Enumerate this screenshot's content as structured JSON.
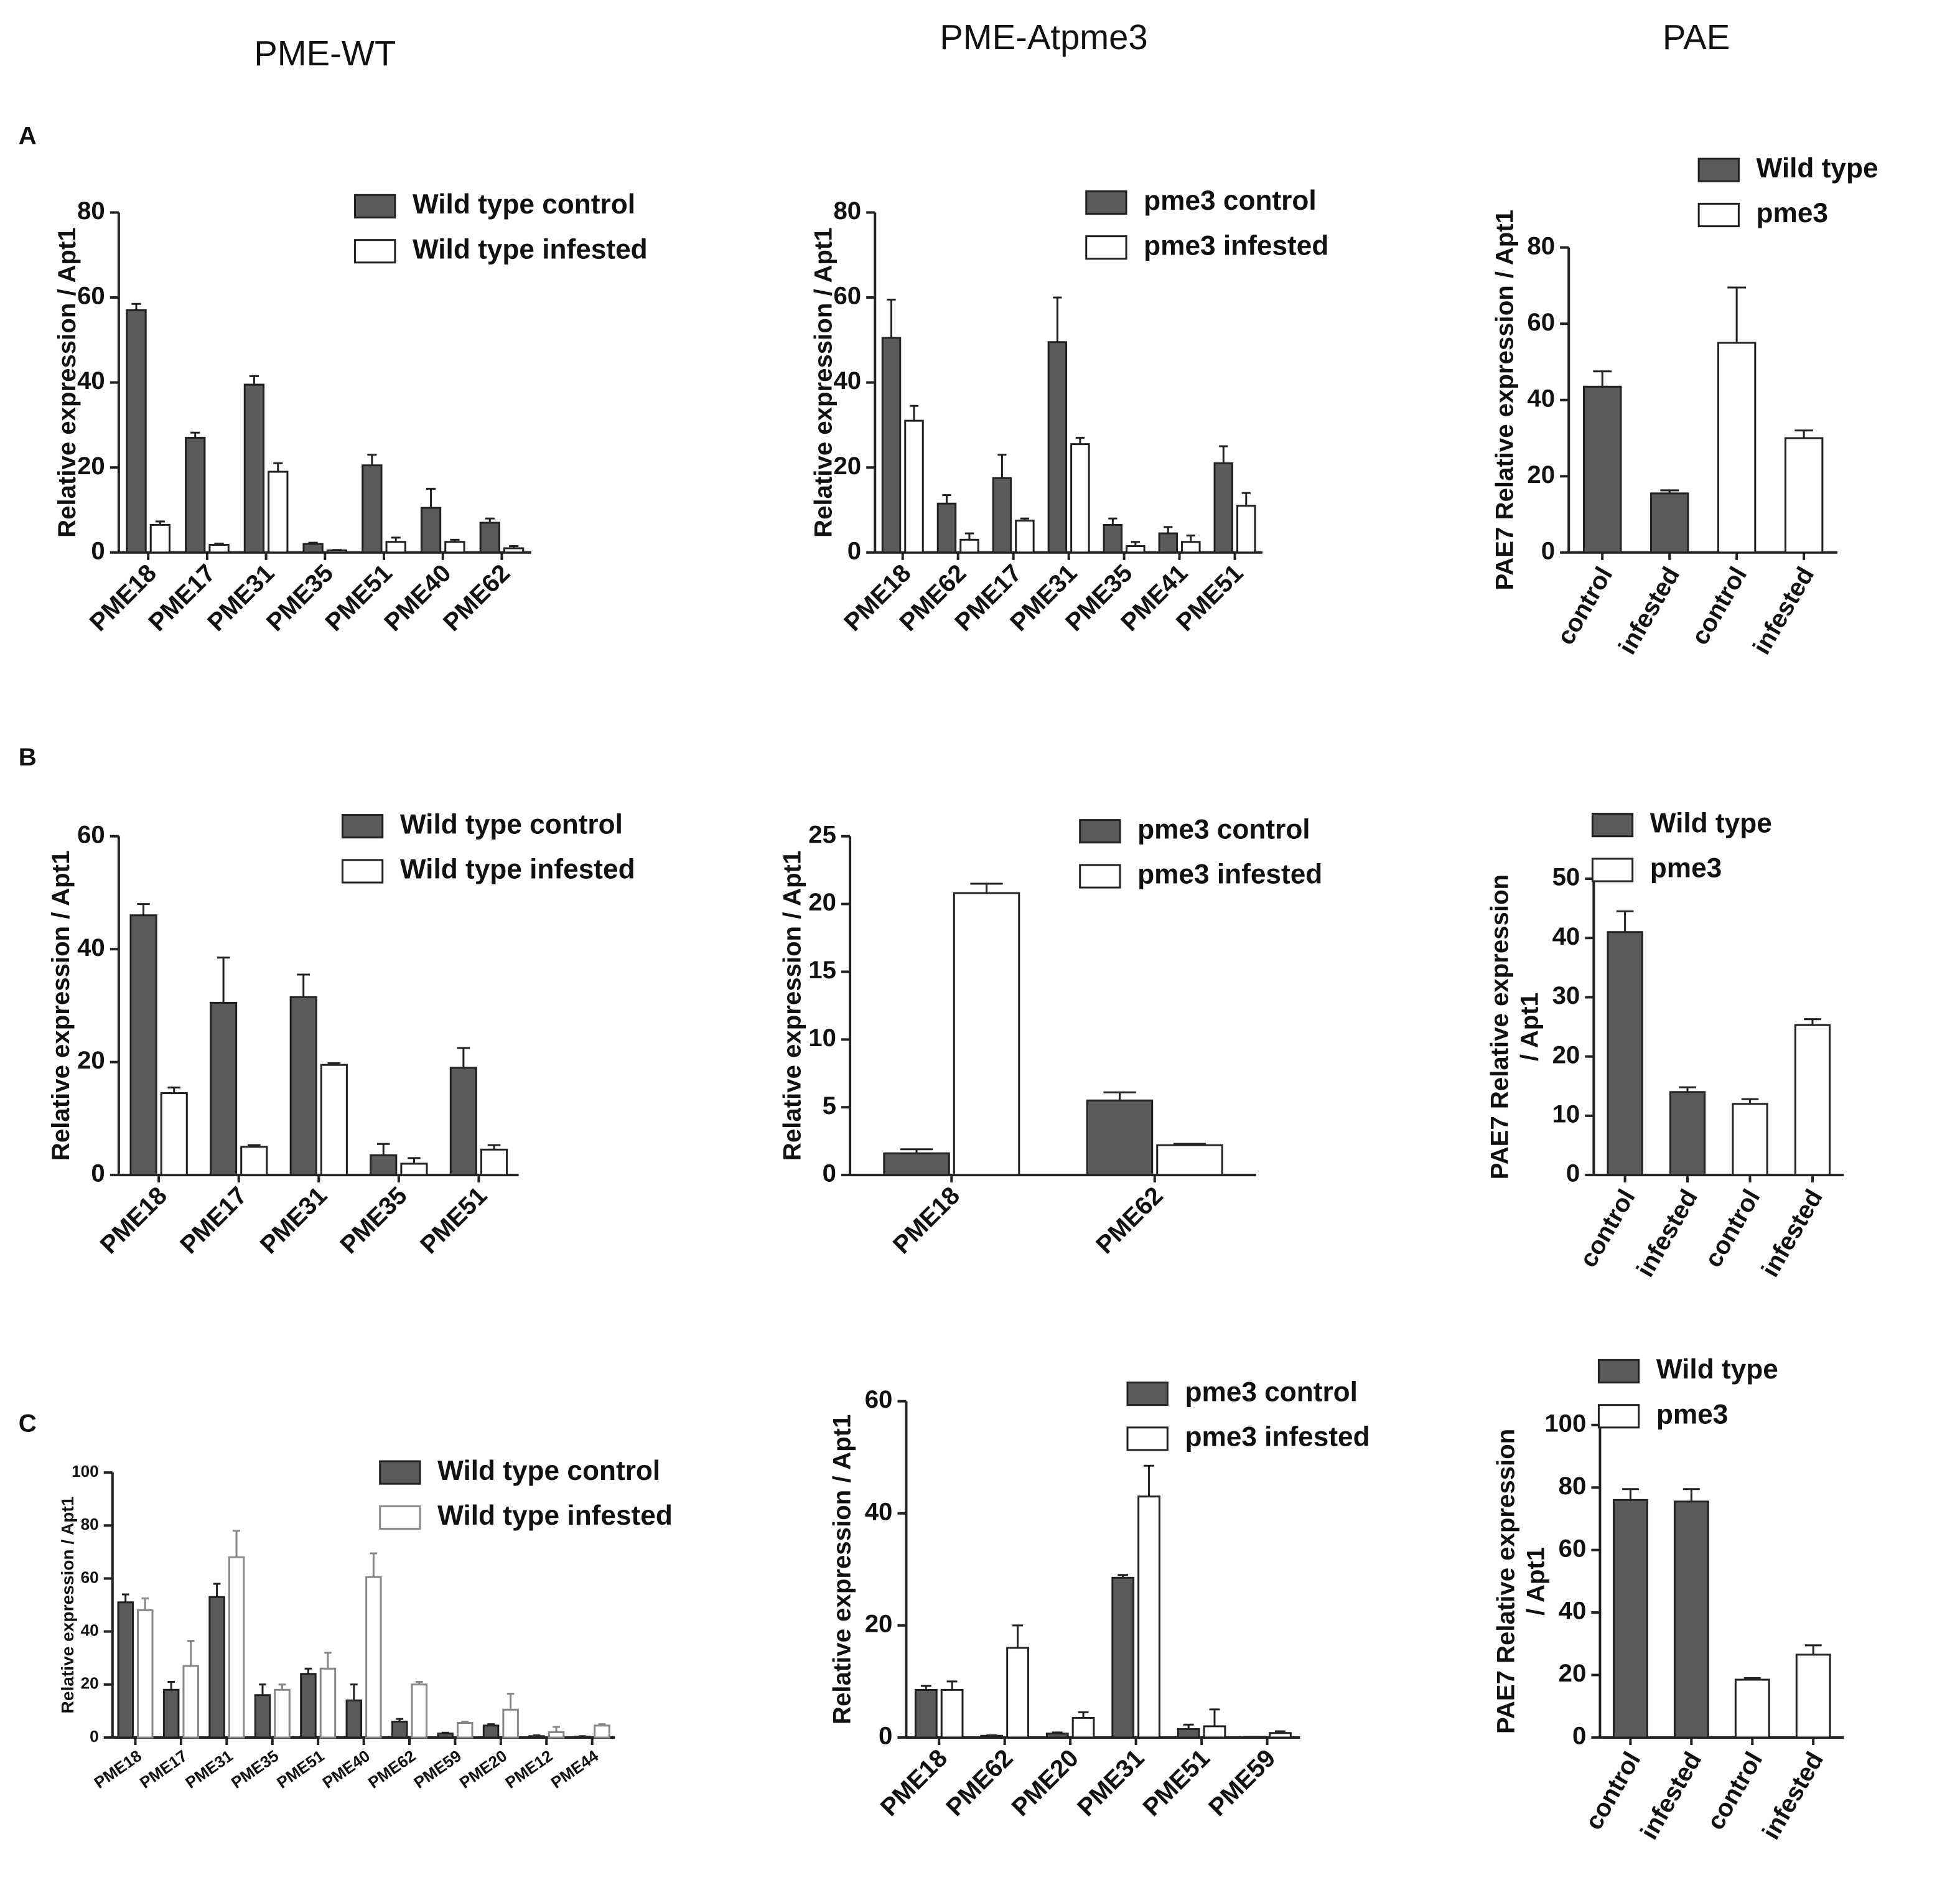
{
  "column_titles": [
    "PME-WT",
    "PME-Atpme3",
    "PAE"
  ],
  "row_labels": [
    "A",
    "B",
    "C"
  ],
  "chart_data": [
    {
      "type": "bar",
      "y_label": [
        "Relative expression / Apt1"
      ],
      "categories": [
        "PME18",
        "PME17",
        "PME31",
        "PME35",
        "PME51",
        "PME40",
        "PME62"
      ],
      "series": [
        {
          "name": "Wild type control",
          "color": "#5a5a5a",
          "values": [
            57,
            27,
            39.5,
            2,
            20.5,
            10.5,
            7
          ],
          "errors": [
            1.5,
            1.2,
            2,
            0.3,
            2.5,
            4.5,
            1
          ]
        },
        {
          "name": "Wild type infested",
          "color": "#ffffff",
          "values": [
            6.5,
            1.8,
            19,
            0.5,
            2.5,
            2.5,
            1
          ],
          "errors": [
            0.8,
            0.3,
            2,
            0.1,
            1,
            0.5,
            0.5
          ]
        }
      ],
      "ylim": [
        0,
        80
      ],
      "yticks": [
        0,
        20,
        40,
        60,
        80
      ]
    },
    {
      "type": "bar",
      "y_label": [
        "Relative expression / Apt1"
      ],
      "categories": [
        "PME18",
        "PME62",
        "PME17",
        "PME31",
        "PME35",
        "PME41",
        "PME51"
      ],
      "series": [
        {
          "name": "pme3 control",
          "color": "#5a5a5a",
          "values": [
            50.5,
            11.5,
            17.5,
            49.5,
            6.5,
            4.5,
            21
          ],
          "errors": [
            9,
            2,
            5.5,
            10.5,
            1.5,
            1.5,
            4
          ]
        },
        {
          "name": "pme3 infested",
          "color": "#ffffff",
          "values": [
            31,
            3,
            7.5,
            25.5,
            1.5,
            2.5,
            11
          ],
          "errors": [
            3.5,
            1.5,
            0.5,
            1.5,
            1,
            1.5,
            3
          ]
        }
      ],
      "ylim": [
        0,
        80
      ],
      "yticks": [
        0,
        20,
        40,
        60,
        80
      ]
    },
    {
      "type": "bar",
      "y_label": [
        "PAE7 Relative expression / Apt1"
      ],
      "categories": [
        "control",
        "infested",
        "control",
        "infested"
      ],
      "series": [
        {
          "name": "Wild type",
          "color": "#5a5a5a",
          "values": [
            43.5,
            15.5,
            null,
            null
          ],
          "errors": [
            4,
            0.8,
            null,
            null
          ]
        },
        {
          "name": "pme3",
          "color": "#ffffff",
          "values": [
            null,
            null,
            55,
            30
          ],
          "errors": [
            null,
            null,
            14.5,
            2
          ]
        }
      ],
      "ylim": [
        0,
        80
      ],
      "yticks": [
        0,
        20,
        40,
        60,
        80
      ]
    },
    {
      "type": "bar",
      "y_label": [
        "Relative expression / Apt1"
      ],
      "categories": [
        "PME18",
        "PME17",
        "PME31",
        "PME35",
        "PME51"
      ],
      "series": [
        {
          "name": "Wild type control",
          "color": "#5a5a5a",
          "values": [
            46,
            30.5,
            31.5,
            3.5,
            19
          ],
          "errors": [
            2,
            8,
            4,
            2,
            3.5
          ]
        },
        {
          "name": "Wild type infested",
          "color": "#ffffff",
          "values": [
            14.5,
            5,
            19.5,
            2,
            4.5
          ],
          "errors": [
            1,
            0.3,
            0.3,
            1,
            0.8
          ]
        }
      ],
      "ylim": [
        0,
        60
      ],
      "yticks": [
        0,
        20,
        40,
        60
      ]
    },
    {
      "type": "bar",
      "y_label": [
        "Relative expression / Apt1"
      ],
      "categories": [
        "PME18",
        "PME62"
      ],
      "series": [
        {
          "name": "pme3 control",
          "color": "#5a5a5a",
          "values": [
            1.6,
            5.5
          ],
          "errors": [
            0.3,
            0.6
          ]
        },
        {
          "name": "pme3 infested",
          "color": "#ffffff",
          "values": [
            20.8,
            2.2
          ],
          "errors": [
            0.7,
            0.1
          ]
        }
      ],
      "ylim": [
        0,
        25
      ],
      "yticks": [
        0,
        5,
        10,
        15,
        20,
        25
      ]
    },
    {
      "type": "bar",
      "y_label": [
        "PAE7 Relative expression",
        "/ Apt1"
      ],
      "categories": [
        "control",
        "infested",
        "control",
        "infested"
      ],
      "series": [
        {
          "name": "Wild type",
          "color": "#5a5a5a",
          "values": [
            41,
            14,
            null,
            null
          ],
          "errors": [
            3.5,
            0.8,
            null,
            null
          ]
        },
        {
          "name": "pme3",
          "color": "#ffffff",
          "values": [
            null,
            null,
            12,
            25.3
          ],
          "errors": [
            null,
            null,
            0.8,
            1
          ]
        }
      ],
      "ylim": [
        0,
        50
      ],
      "yticks": [
        0,
        10,
        20,
        30,
        40,
        50
      ]
    },
    {
      "type": "bar",
      "y_label": [
        "Relative expression / Apt1"
      ],
      "categories": [
        "PME18",
        "PME17",
        "PME31",
        "PME35",
        "PME51",
        "PME40",
        "PME62",
        "PME59",
        "PME20",
        "PME12",
        "PME44"
      ],
      "series": [
        {
          "name": "Wild type control",
          "color": "#5a5a5a",
          "values": [
            51,
            18,
            53,
            16,
            24,
            14,
            6,
            1.5,
            4.5,
            0.5,
            0.3
          ],
          "errors": [
            3,
            3,
            5,
            4,
            2,
            6,
            1,
            0.3,
            0.5,
            0.3,
            0.2
          ]
        },
        {
          "name": "Wild type infested",
          "color": "#ffffff",
          "values": [
            48,
            27,
            68,
            18,
            26,
            60.5,
            20,
            5.5,
            10.5,
            2,
            4.5
          ],
          "errors": [
            4.5,
            9.5,
            10,
            2,
            6,
            9,
            1,
            0.5,
            6,
            2,
            0.5
          ]
        }
      ],
      "ylim": [
        0,
        100
      ],
      "yticks": [
        0,
        20,
        40,
        60,
        80,
        100
      ]
    },
    {
      "type": "bar",
      "y_label": [
        "Relative expression / Apt1"
      ],
      "categories": [
        "PME18",
        "PME62",
        "PME20",
        "PME31",
        "PME51",
        "PME59"
      ],
      "series": [
        {
          "name": "pme3 control",
          "color": "#5a5a5a",
          "values": [
            8.5,
            0.3,
            0.7,
            28.5,
            1.5,
            0.1
          ],
          "errors": [
            0.7,
            0.1,
            0.2,
            0.5,
            0.8,
            0
          ]
        },
        {
          "name": "pme3 infested",
          "color": "#ffffff",
          "values": [
            8.5,
            16,
            3.5,
            43,
            2,
            0.8
          ],
          "errors": [
            1.5,
            4,
            1,
            5.5,
            3,
            0.3
          ]
        }
      ],
      "ylim": [
        0,
        60
      ],
      "yticks": [
        0,
        20,
        40,
        60
      ]
    },
    {
      "type": "bar",
      "y_label": [
        "PAE7 Relative expression",
        "/ Apt1"
      ],
      "categories": [
        "control",
        "infested",
        "control",
        "infested"
      ],
      "series": [
        {
          "name": "Wild type",
          "color": "#5a5a5a",
          "values": [
            76,
            75.5,
            null,
            null
          ],
          "errors": [
            3.5,
            4,
            null,
            null
          ]
        },
        {
          "name": "pme3",
          "color": "#ffffff",
          "values": [
            null,
            null,
            18.5,
            26.5
          ],
          "errors": [
            null,
            null,
            0.5,
            3
          ]
        }
      ],
      "ylim": [
        0,
        100
      ],
      "yticks": [
        0,
        20,
        40,
        60,
        80,
        100
      ]
    }
  ]
}
